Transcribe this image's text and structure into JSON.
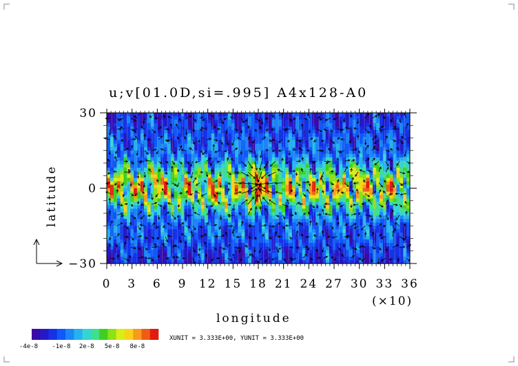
{
  "chart_data": {
    "type": "heatmap",
    "title": "u;v[01.0D,si=.995]  A4x128-A0",
    "xlabel": "longitude",
    "x_multiplier": "(×10)",
    "ylabel": "latitude",
    "x_ticks": [
      "0",
      "3",
      "6",
      "9",
      "12",
      "15",
      "18",
      "21",
      "24",
      "27",
      "30",
      "33",
      "36"
    ],
    "y_ticks": [
      "30",
      "0",
      "−30"
    ],
    "xlim": [
      0,
      360
    ],
    "ylim": [
      -30,
      30
    ],
    "colorbar": {
      "colors": [
        "#3a0aa8",
        "#2419c8",
        "#1532e6",
        "#1058f8",
        "#1a86f8",
        "#26b2ee",
        "#34d4d4",
        "#3ee08e",
        "#3ed01e",
        "#8ee018",
        "#d8ee16",
        "#f8d21a",
        "#f89a1a",
        "#f05c14",
        "#e01c10"
      ],
      "labels": [
        "-4e-8",
        "-1e-8",
        "2e-8",
        "5e-8",
        "8e-8"
      ]
    },
    "unit_note": "XUNIT = 3.333E+00, YUNIT = 3.333E+00",
    "peaks": [
      {
        "lon": 180,
        "lat": 5,
        "amp": 1.0
      },
      {
        "lon": 178,
        "lat": -3,
        "amp": 0.9
      },
      {
        "lon": 60,
        "lat": 5,
        "amp": 0.7
      },
      {
        "lon": 130,
        "lat": -5,
        "amp": 0.7
      },
      {
        "lon": 300,
        "lat": 6,
        "amp": 0.7
      },
      {
        "lon": 20,
        "lat": 3,
        "amp": 0.6
      }
    ]
  }
}
